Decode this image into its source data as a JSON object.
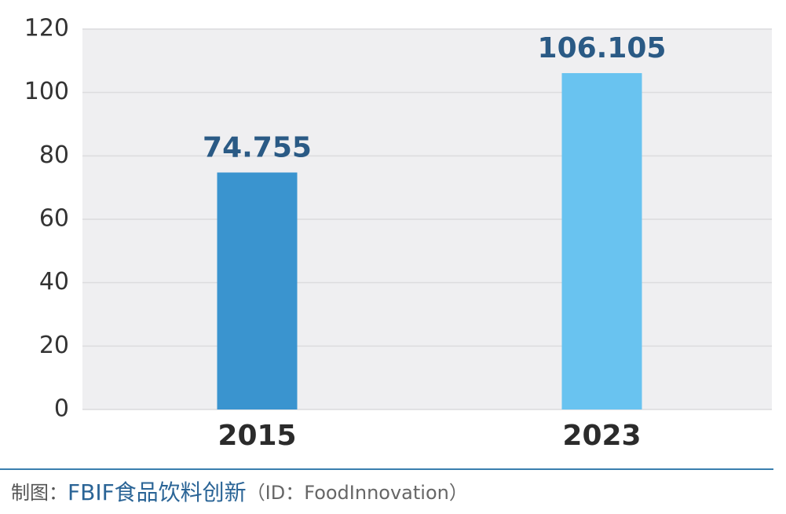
{
  "chart_data": {
    "type": "bar",
    "categories": [
      "2015",
      "2023"
    ],
    "values": [
      74.755,
      106.105
    ],
    "colors": [
      "#3a94cf",
      "#69c3f0"
    ],
    "ylim": [
      0,
      120
    ],
    "yticks": [
      0,
      20,
      40,
      60,
      80,
      100,
      120
    ],
    "grid": true
  },
  "footer": {
    "label": "制图：",
    "brand": "FBIF食品饮料创新",
    "id": "（ID：FoodInnovation）"
  }
}
